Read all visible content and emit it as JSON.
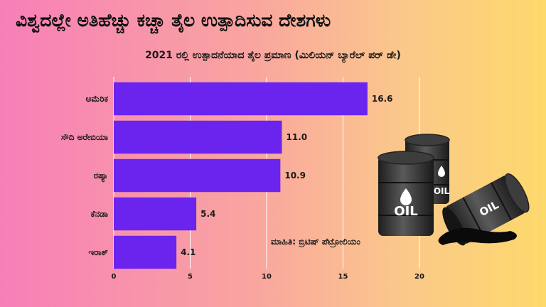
{
  "header": {
    "title": "ವಿಶ್ವದಲ್ಲೇ ಅತಿಹೆಚ್ಚು ಕಚ್ಚಾ ತೈಲ ಉತ್ಪಾದಿಸುವ ದೇಶಗಳು",
    "subtitle": "2021 ರಲ್ಲಿ ಉತ್ಪಾದನೆಯಾದ ತೈಲ ಪ್ರಮಾಣ (ಮಿಲಿಯನ್ ಬ್ಯಾರೆಲ್ ಪರ್ ಡೇ)"
  },
  "source": "ಮಾಹಿತಿ: ಬ್ರಿಟಿಷ್ ಪೆಟ್ರೋಲಿಯಂ",
  "illustration": {
    "label": "OIL",
    "icon": "oil-barrels-icon"
  },
  "colors": {
    "bar": "#6a24ee",
    "grid": "#ffffff",
    "barrel": "#2b2b2b"
  },
  "chart_data": {
    "type": "bar",
    "orientation": "horizontal",
    "categories": [
      "ಅಮೆರಿಕ",
      "ಸೌದಿ ಅರೇಬಿಯಾ",
      "ರಷ್ಯಾ",
      "ಕೆನಡಾ",
      "ಇರಾಕ್"
    ],
    "values": [
      16.6,
      11.0,
      10.9,
      5.4,
      4.1
    ],
    "value_labels": [
      "16.6",
      "11.0",
      "10.9",
      "5.4",
      "4.1"
    ],
    "xlim": [
      0,
      20
    ],
    "xticks": [
      0,
      5,
      10,
      15,
      20
    ],
    "grid": true
  }
}
